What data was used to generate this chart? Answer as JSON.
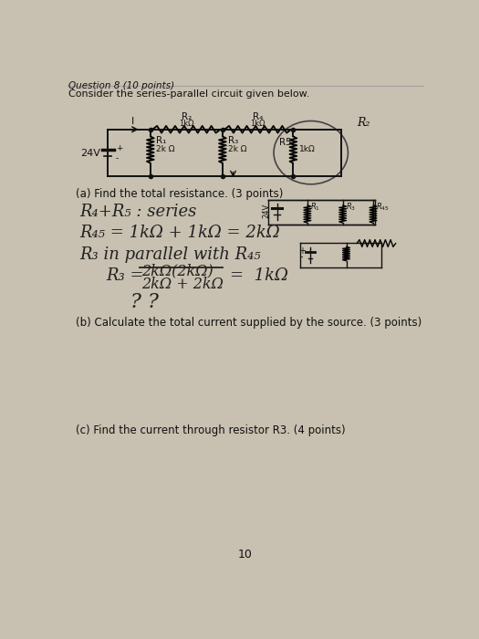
{
  "bg_color": "#c8c0b0",
  "text_color": "#1a1a1a",
  "title": "Question 8 (10 points)",
  "subtitle": "Consider the series-parallel circuit given below.",
  "part_a": "(a) Find the total resistance. (3 points)",
  "part_b": "(b) Calculate the total current supplied by the source. (3 points)",
  "part_c": "(c) Find the current through resistor R3. (4 points)",
  "page_number": "10",
  "circuit": {
    "source_voltage": "24V",
    "r1_label": "R₁",
    "r1_val": "2k Ω",
    "r2_label": "R₂",
    "r2_val": "1kΩ",
    "r3_label": "R₃",
    "r3_val": "2k Ω",
    "r4_label": "R₄",
    "r4_val": "1kΩ",
    "r5_label": "R5",
    "r5_val": "1kΩ",
    "current_label": "I"
  }
}
